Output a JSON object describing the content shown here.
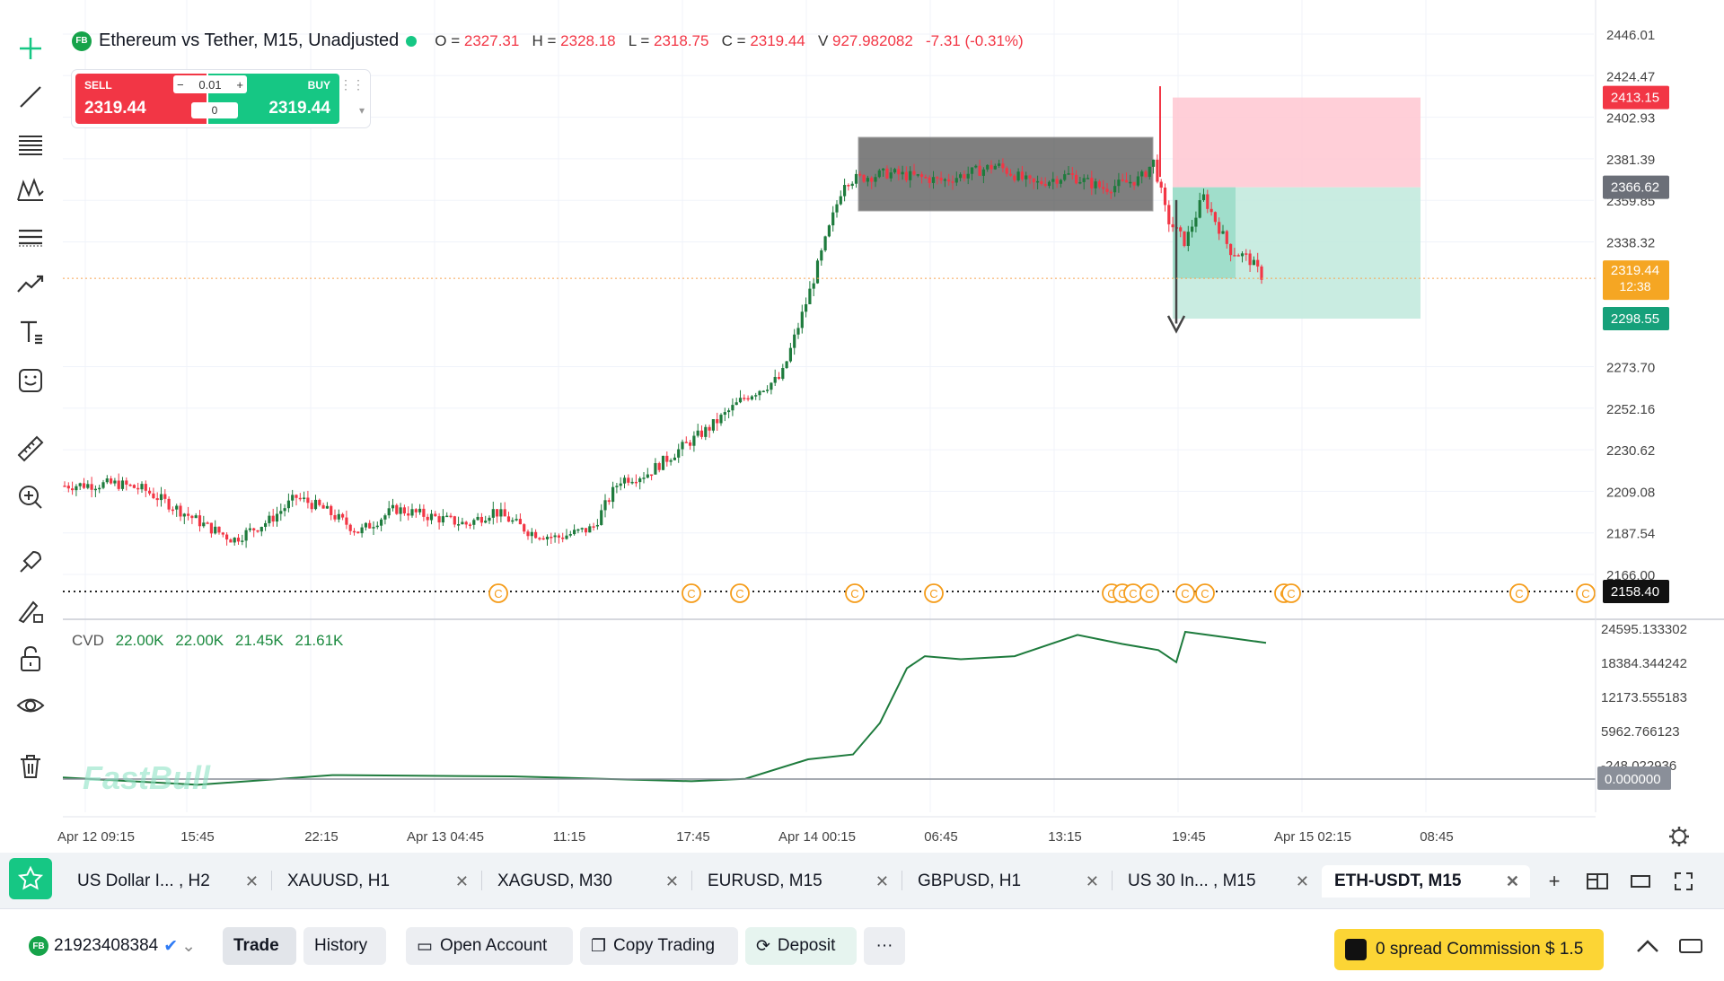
{
  "toolbar": {
    "tools": [
      "crosshair-icon",
      "trend-line-icon",
      "fib-retracement-icon",
      "pattern-icon",
      "horizontal-lines-icon",
      "forecast-icon",
      "text-icon",
      "emoji-icon",
      "ruler-icon",
      "zoom-in-icon",
      "magnet-icon",
      "brush-lock-icon",
      "lock-icon",
      "eye-icon",
      "trash-icon"
    ]
  },
  "legend": {
    "badge": "FB",
    "title": "Ethereum vs Tether, M15, Unadjusted",
    "o_label": "O =",
    "o": "2327.31",
    "h_label": "H =",
    "h": "2328.18",
    "l_label": "L =",
    "l": "2318.75",
    "c_label": "C =",
    "c": "2319.44",
    "v_label": "V",
    "v": "927.982082",
    "change": "-7.31 (-0.31%)"
  },
  "trade_widget": {
    "sell_label": "SELL",
    "sell_price": "2319.44",
    "buy_label": "BUY",
    "buy_price": "2319.44",
    "qty": "0.01",
    "spread": "0",
    "minus": "−",
    "plus": "+"
  },
  "price_axis": {
    "ticks": [
      "2446.01",
      "2424.47",
      "2402.93",
      "2381.39",
      "2359.85",
      "2338.32",
      "2273.70",
      "2252.16",
      "2230.62",
      "2209.08",
      "2187.54",
      "2166.00"
    ],
    "labels": {
      "sl": "2413.15",
      "entry": "2366.62",
      "current_price": "2319.44",
      "countdown": "12:38",
      "tp": "2298.55",
      "dotted_level": "2158.40"
    }
  },
  "cvd": {
    "name": "CVD",
    "values": [
      "22.00K",
      "22.00K",
      "21.45K",
      "21.61K"
    ],
    "ticks": [
      "24595.133302",
      "18384.344242",
      "12173.555183",
      "5962.766123",
      "-248.022936"
    ],
    "current": "0.000000"
  },
  "time_axis": [
    "Apr 12 09:15",
    "15:45",
    "22:15",
    "Apr 13 04:45",
    "11:15",
    "17:45",
    "Apr 14 00:15",
    "06:45",
    "13:15",
    "19:45",
    "Apr 15 02:15",
    "08:45"
  ],
  "event_marker": "C",
  "watermark": "FastBull",
  "colors": {
    "up": "#1e7b3d",
    "down": "#f23645",
    "accent": "#16c784",
    "sl_zone": "#ffc7d1",
    "tp_zone": "#bfe9dc"
  },
  "tabs": [
    {
      "label": "US Dollar I... , H2"
    },
    {
      "label": "XAUUSD, H1"
    },
    {
      "label": "XAGUSD, M30"
    },
    {
      "label": "EURUSD, M15"
    },
    {
      "label": "GBPUSD, H1"
    },
    {
      "label": "US 30 In... , M15"
    },
    {
      "label": "ETH-USDT, M15",
      "active": true
    }
  ],
  "bottom": {
    "account_badge": "FB",
    "account": "21923408384",
    "trade": "Trade",
    "history": "History",
    "open_account": "Open Account",
    "copy_trading": "Copy Trading",
    "deposit": "Deposit",
    "more": "···",
    "promo": "0 spread Commission $ 1.5"
  }
}
